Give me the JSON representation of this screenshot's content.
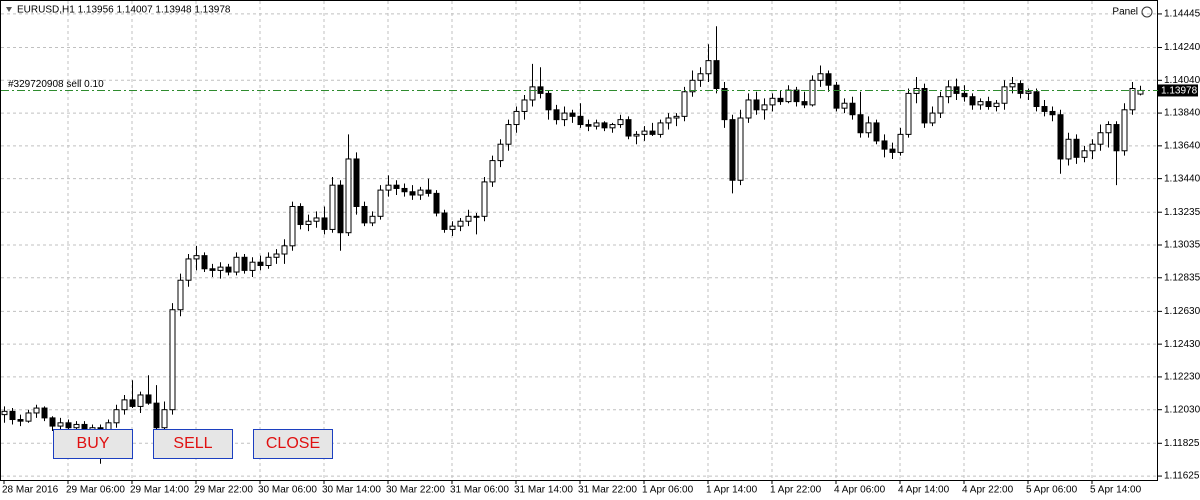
{
  "chart_data": {
    "type": "candlestick",
    "title": "EURUSD,H1  1.13956 1.14007 1.13948 1.13978",
    "panel_label": "Panel",
    "order_label": "#329720908 sell 0.10",
    "order_price": 1.13978,
    "order_color": "#2e8b2e",
    "up_color": "#ffffff",
    "down_color": "#000000",
    "grid": true,
    "ylim": [
      1.11601,
      1.1453
    ],
    "yticks": [
      1.14445,
      {
        "value": 1.1424,
        "label": "1.14240"
      },
      {
        "value": 1.1404,
        "label": "1.14040"
      },
      {
        "value": 1.1384,
        "label": "1.13840"
      },
      {
        "value": 1.1364,
        "label": "1.13640"
      },
      {
        "value": 1.1344,
        "label": "1.13440"
      },
      1.13235,
      1.13035,
      1.12835,
      {
        "value": 1.1263,
        "label": "1.12630"
      },
      {
        "value": 1.1243,
        "label": "1.12430"
      },
      {
        "value": 1.1223,
        "label": "1.12230"
      },
      {
        "value": 1.1203,
        "label": "1.12030"
      },
      1.11825,
      1.11625
    ],
    "categories": [
      "28 Mar 2016",
      null,
      null,
      null,
      null,
      null,
      null,
      null,
      "29 Mar 06:00",
      null,
      null,
      null,
      null,
      null,
      null,
      null,
      "29 Mar 14:00",
      null,
      null,
      null,
      null,
      null,
      null,
      null,
      "29 Mar 22:00",
      null,
      null,
      null,
      null,
      null,
      null,
      null,
      "30 Mar 06:00",
      null,
      null,
      null,
      null,
      null,
      null,
      null,
      "30 Mar 14:00",
      null,
      null,
      null,
      null,
      null,
      null,
      null,
      "30 Mar 22:00",
      null,
      null,
      null,
      null,
      null,
      null,
      null,
      "31 Mar 06:00",
      null,
      null,
      null,
      null,
      null,
      null,
      null,
      "31 Mar 14:00",
      null,
      null,
      null,
      null,
      null,
      null,
      null,
      "31 Mar 22:00",
      null,
      null,
      null,
      null,
      null,
      null,
      null,
      "1 Apr 06:00",
      null,
      null,
      null,
      null,
      null,
      null,
      null,
      "1 Apr 14:00",
      null,
      null,
      null,
      null,
      null,
      null,
      null,
      "1 Apr 22:00",
      null,
      null,
      null,
      null,
      null,
      null,
      null,
      "4 Apr 06:00",
      null,
      null,
      null,
      null,
      null,
      null,
      null,
      "4 Apr 14:00",
      null,
      null,
      null,
      null,
      null,
      null,
      null,
      "4 Apr 22:00",
      null,
      null,
      null,
      null,
      null,
      null,
      null,
      "5 Apr 06:00",
      null,
      null,
      null,
      null,
      null,
      null,
      null,
      "5 Apr 14:00",
      null,
      null,
      null,
      null,
      null,
      null
    ],
    "open": [
      1.12,
      1.1202,
      1.1197,
      1.1196,
      1.1201,
      1.1204,
      1.1198,
      1.1193,
      1.1195,
      1.1192,
      1.1194,
      1.1189,
      1.1192,
      1.1185,
      1.1195,
      1.1203,
      1.1209,
      1.1205,
      1.1212,
      1.1207,
      1.1192,
      1.1203,
      1.1264,
      1.1282,
      1.1295,
      1.1297,
      1.1289,
      1.1288,
      1.129,
      1.1287,
      1.1296,
      1.1288,
      1.1293,
      1.1291,
      1.1296,
      1.1298,
      1.1303,
      1.1327,
      1.1316,
      1.1318,
      1.132,
      1.1313,
      1.134,
      1.1311,
      1.1356,
      1.1327,
      1.1317,
      1.1321,
      1.1337,
      1.134,
      1.1338,
      1.1336,
      1.1334,
      1.1337,
      1.1335,
      1.1323,
      1.1313,
      1.1315,
      1.1318,
      1.1321,
      1.1321,
      1.1342,
      1.1355,
      1.1365,
      1.1377,
      1.1385,
      1.1392,
      1.14,
      1.1396,
      1.1386,
      1.138,
      1.1384,
      1.1382,
      1.1377,
      1.1376,
      1.1378,
      1.1375,
      1.1377,
      1.138,
      1.137,
      1.1371,
      1.1373,
      1.1371,
      1.1378,
      1.1381,
      1.1382,
      1.1397,
      1.1404,
      1.1408,
      1.1416,
      1.1399,
      1.138,
      1.1343,
      1.1381,
      1.1392,
      1.1386,
      1.1389,
      1.1393,
      1.1391,
      1.1398,
      1.1391,
      1.1389,
      1.1404,
      1.1408,
      1.1401,
      1.1387,
      1.139,
      1.1383,
      1.1372,
      1.1378,
      1.1367,
      1.1362,
      1.136,
      1.1371,
      1.1396,
      1.1399,
      1.1378,
      1.1384,
      1.1394,
      1.14,
      1.1396,
      1.1394,
      1.1389,
      1.1391,
      1.1388,
      1.139,
      1.14,
      1.1402,
      1.1396,
      1.1397,
      1.1388,
      1.1385,
      1.1383,
      1.1356,
      1.1368,
      1.1357,
      1.1361,
      1.1365,
      1.1372,
      1.1377,
      1.1361,
      1.1386,
      1.13956
    ],
    "high": [
      1.1205,
      1.1204,
      1.12,
      1.1203,
      1.1206,
      1.1205,
      1.1199,
      1.1198,
      1.1197,
      1.1196,
      1.1196,
      1.1194,
      1.1194,
      1.1197,
      1.1206,
      1.1212,
      1.1221,
      1.1214,
      1.1224,
      1.1218,
      1.1208,
      1.1268,
      1.1286,
      1.1298,
      1.1303,
      1.1299,
      1.1292,
      1.1293,
      1.1292,
      1.1299,
      1.1298,
      1.1296,
      1.1297,
      1.1299,
      1.1301,
      1.1307,
      1.133,
      1.1329,
      1.1322,
      1.1324,
      1.1327,
      1.1345,
      1.1343,
      1.1371,
      1.136,
      1.133,
      1.1324,
      1.134,
      1.1346,
      1.1343,
      1.1341,
      1.134,
      1.1339,
      1.1344,
      1.1337,
      1.1325,
      1.1318,
      1.132,
      1.1325,
      1.1323,
      1.1345,
      1.1358,
      1.1368,
      1.138,
      1.1388,
      1.1395,
      1.1414,
      1.1412,
      1.1398,
      1.1389,
      1.1388,
      1.1386,
      1.139,
      1.138,
      1.138,
      1.1379,
      1.1378,
      1.1383,
      1.1382,
      1.1373,
      1.1376,
      1.1378,
      1.138,
      1.1384,
      1.1384,
      1.14,
      1.141,
      1.1412,
      1.1426,
      1.1437,
      1.1403,
      1.1383,
      1.1386,
      1.1396,
      1.1397,
      1.1393,
      1.1396,
      1.1398,
      1.1401,
      1.14,
      1.1397,
      1.1407,
      1.1413,
      1.141,
      1.1403,
      1.1393,
      1.1394,
      1.1397,
      1.1382,
      1.138,
      1.1371,
      1.1366,
      1.1375,
      1.1399,
      1.1406,
      1.1402,
      1.1388,
      1.1397,
      1.1404,
      1.1405,
      1.1401,
      1.1396,
      1.1393,
      1.1394,
      1.1392,
      1.1404,
      1.1406,
      1.1404,
      1.1399,
      1.1399,
      1.1392,
      1.1388,
      1.1386,
      1.1372,
      1.1371,
      1.1364,
      1.1368,
      1.1377,
      1.1379,
      1.1379,
      1.139,
      1.1403,
      1.14007
    ],
    "low": [
      1.1195,
      1.1194,
      1.1193,
      1.1195,
      1.1198,
      1.1196,
      1.119,
      1.1188,
      1.119,
      1.1187,
      1.1186,
      1.118,
      1.117,
      1.1182,
      1.1192,
      1.12,
      1.1204,
      1.1201,
      1.1206,
      1.1185,
      1.1189,
      1.12,
      1.126,
      1.1278,
      1.1288,
      1.1287,
      1.1284,
      1.1283,
      1.1285,
      1.1285,
      1.1286,
      1.1284,
      1.1288,
      1.1289,
      1.1292,
      1.1292,
      1.13,
      1.1313,
      1.1312,
      1.1314,
      1.131,
      1.1311,
      1.13,
      1.1309,
      1.1322,
      1.1315,
      1.1315,
      1.1319,
      1.1333,
      1.1334,
      1.1333,
      1.1331,
      1.1331,
      1.1333,
      1.1321,
      1.1311,
      1.1309,
      1.1312,
      1.1315,
      1.131,
      1.1318,
      1.1339,
      1.1351,
      1.1361,
      1.1372,
      1.138,
      1.1388,
      1.1393,
      1.138,
      1.1377,
      1.1376,
      1.1378,
      1.1375,
      1.1373,
      1.1374,
      1.1373,
      1.1372,
      1.1375,
      1.1368,
      1.1365,
      1.1367,
      1.137,
      1.1369,
      1.1374,
      1.1376,
      1.1379,
      1.1394,
      1.14,
      1.1403,
      1.1396,
      1.1375,
      1.1335,
      1.134,
      1.1378,
      1.1383,
      1.138,
      1.1385,
      1.1389,
      1.139,
      1.1388,
      1.1387,
      1.1388,
      1.14,
      1.1397,
      1.1385,
      1.1384,
      1.138,
      1.1369,
      1.1369,
      1.1365,
      1.1357,
      1.1356,
      1.1358,
      1.1369,
      1.139,
      1.1375,
      1.1376,
      1.1381,
      1.139,
      1.1392,
      1.1391,
      1.1386,
      1.1386,
      1.1386,
      1.1385,
      1.1386,
      1.1396,
      1.1393,
      1.1392,
      1.1385,
      1.1382,
      1.1379,
      1.1347,
      1.1352,
      1.1353,
      1.1354,
      1.1356,
      1.1361,
      1.1363,
      1.134,
      1.1358,
      1.1383,
      1.13948
    ],
    "close": [
      1.1202,
      1.1197,
      1.1196,
      1.1201,
      1.1204,
      1.1198,
      1.1193,
      1.1195,
      1.1192,
      1.1194,
      1.1189,
      1.1192,
      1.1185,
      1.1195,
      1.1203,
      1.1209,
      1.1205,
      1.1212,
      1.1207,
      1.1192,
      1.1203,
      1.1264,
      1.1282,
      1.1295,
      1.1297,
      1.1289,
      1.1288,
      1.129,
      1.1287,
      1.1296,
      1.1288,
      1.1293,
      1.1291,
      1.1296,
      1.1298,
      1.1303,
      1.1327,
      1.1316,
      1.1318,
      1.132,
      1.1313,
      1.134,
      1.1311,
      1.1356,
      1.1327,
      1.1317,
      1.1321,
      1.1337,
      1.134,
      1.1338,
      1.1336,
      1.1334,
      1.1337,
      1.1335,
      1.1323,
      1.1313,
      1.1315,
      1.1318,
      1.1321,
      1.1321,
      1.1342,
      1.1355,
      1.1365,
      1.1377,
      1.1385,
      1.1392,
      1.14,
      1.1396,
      1.1386,
      1.138,
      1.1384,
      1.1382,
      1.1377,
      1.1376,
      1.1378,
      1.1375,
      1.1377,
      1.138,
      1.137,
      1.1371,
      1.1373,
      1.1371,
      1.1378,
      1.1381,
      1.1382,
      1.1397,
      1.1404,
      1.1408,
      1.1416,
      1.1399,
      1.138,
      1.1343,
      1.1381,
      1.1392,
      1.1386,
      1.1389,
      1.1393,
      1.1391,
      1.1398,
      1.1391,
      1.1389,
      1.1404,
      1.1408,
      1.1401,
      1.1387,
      1.139,
      1.1383,
      1.1372,
      1.1378,
      1.1367,
      1.1362,
      1.136,
      1.1371,
      1.1396,
      1.1399,
      1.1378,
      1.1384,
      1.1394,
      1.14,
      1.1396,
      1.1394,
      1.1389,
      1.1391,
      1.1388,
      1.139,
      1.14,
      1.1402,
      1.1396,
      1.1397,
      1.1388,
      1.1385,
      1.1383,
      1.1356,
      1.1368,
      1.1357,
      1.1361,
      1.1365,
      1.1372,
      1.1377,
      1.1361,
      1.1386,
      1.1399,
      1.13978
    ]
  },
  "buttons": [
    "BUY",
    "SELL",
    "CLOSE"
  ]
}
